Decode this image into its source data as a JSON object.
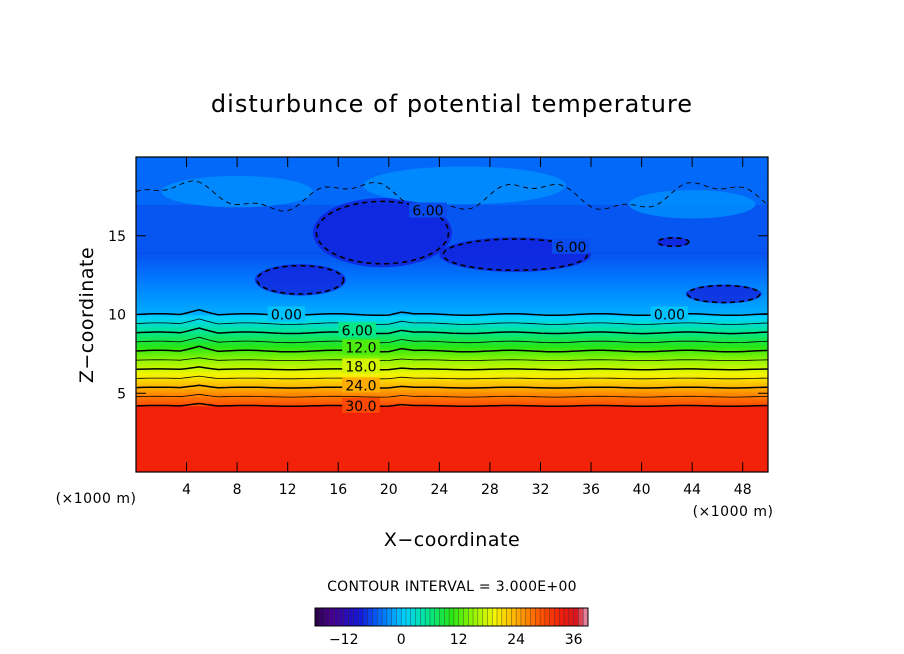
{
  "chart_data": {
    "type": "heatmap",
    "title": "disturbunce of potential temperature",
    "xlabel": "X−coordinate",
    "ylabel": "Z−coordinate",
    "x_unit": "(×1000 m)",
    "z_unit": "(×1000 m)",
    "xlim": [
      0,
      50
    ],
    "ylim": [
      0,
      20
    ],
    "x_ticks": [
      4,
      8,
      12,
      16,
      20,
      24,
      28,
      32,
      36,
      40,
      44,
      48
    ],
    "y_ticks": [
      5,
      10,
      15
    ],
    "contour_interval_text": "CONTOUR INTERVAL = 3.000E+00",
    "contour_interval": 3.0,
    "contour_labels": [
      {
        "text": "30.0",
        "x": 17.8,
        "z": 4.2
      },
      {
        "text": "24.0",
        "x": 17.8,
        "z": 5.5
      },
      {
        "text": "18.0",
        "x": 17.8,
        "z": 6.7
      },
      {
        "text": "12.0",
        "x": 17.8,
        "z": 7.9
      },
      {
        "text": "6.00",
        "x": 17.5,
        "z": 9.0
      },
      {
        "text": "0.00",
        "x": 11.9,
        "z": 10.0
      },
      {
        "text": "0.00",
        "x": 42.2,
        "z": 10.0
      },
      {
        "text": "6.00",
        "x": 23.1,
        "z": 16.6
      },
      {
        "text": "6.00",
        "x": 34.4,
        "z": 14.3
      }
    ],
    "colorbar": {
      "min": -18,
      "max": 39,
      "ticks": [
        -12,
        0,
        12,
        24,
        36
      ],
      "tick_labels": [
        "−12",
        "0",
        "12",
        "24",
        "36"
      ]
    }
  }
}
